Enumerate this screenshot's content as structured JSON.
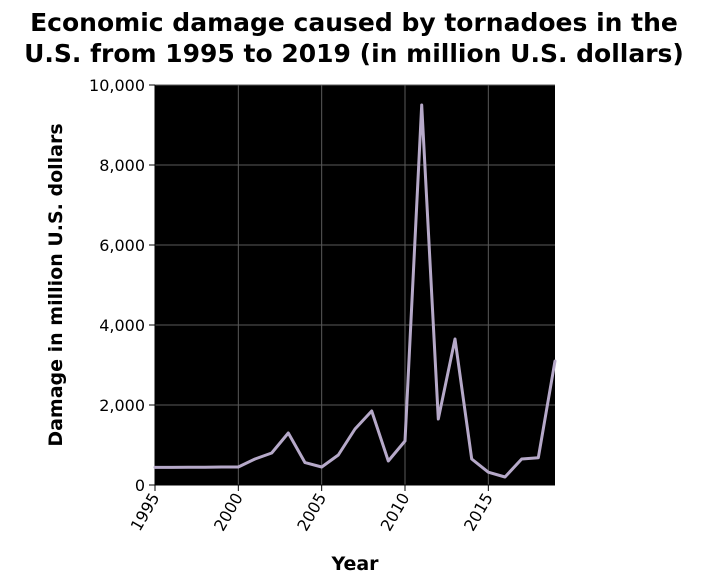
{
  "chart_data": {
    "type": "line",
    "title": "Economic damage caused by tornadoes in the U.S. from 1995 to 2019 (in million U.S. dollars)",
    "title_lines": [
      "Economic damage caused by tornadoes in the",
      "U.S. from 1995 to 2019 (in million U.S. dollars)"
    ],
    "xlabel": "Year",
    "ylabel": "Damage in million U.S. dollars",
    "xlim": [
      1995,
      2019
    ],
    "ylim": [
      0,
      10000
    ],
    "x_ticks": [
      1995,
      2000,
      2005,
      2010,
      2015
    ],
    "y_ticks": [
      0,
      2000,
      4000,
      6000,
      8000,
      10000
    ],
    "x_tick_labels": [
      "1995",
      "2000",
      "2005",
      "2010",
      "2015"
    ],
    "y_tick_labels": [
      "0",
      "2,000",
      "4,000",
      "6,000",
      "8,000",
      "10,000"
    ],
    "grid": true,
    "line_color": "#b6a9c9",
    "series": [
      {
        "x": [
          1995,
          1996,
          1997,
          1998,
          1999,
          2000,
          2001,
          2002,
          2003,
          2004,
          2005,
          2006,
          2007,
          2008,
          2009,
          2010,
          2011,
          2012,
          2013,
          2014,
          2015,
          2016,
          2017,
          2018,
          2019
        ],
        "values": [
          440,
          440,
          445,
          445,
          450,
          450,
          650,
          800,
          1300,
          560,
          450,
          750,
          1400,
          1850,
          600,
          1100,
          9500,
          1650,
          3650,
          650,
          320,
          200,
          650,
          680,
          3100
        ]
      }
    ]
  }
}
